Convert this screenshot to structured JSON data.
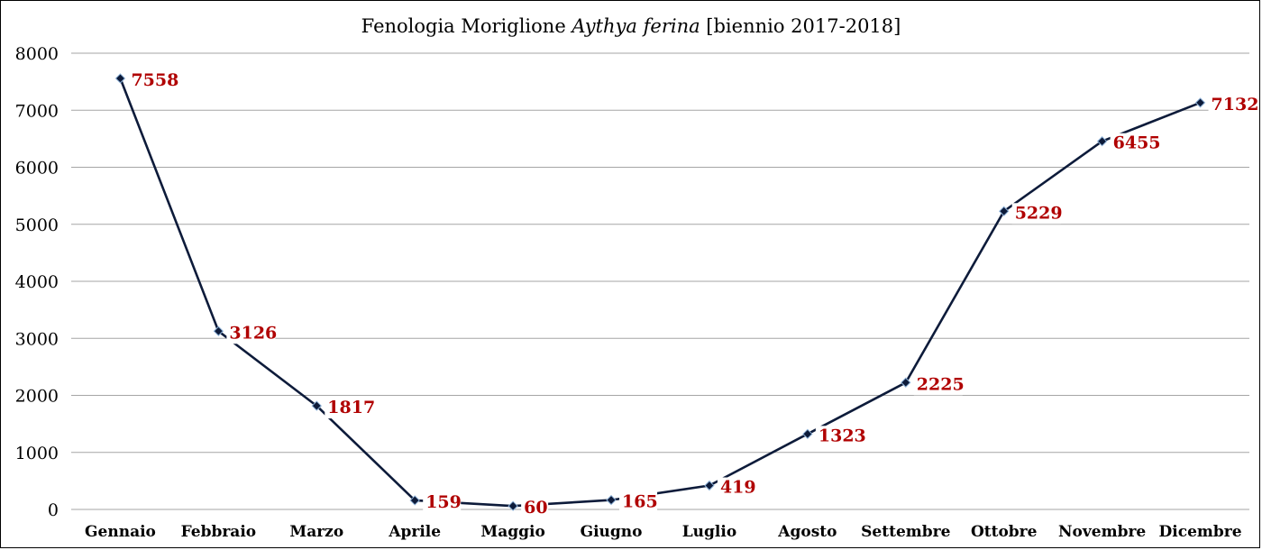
{
  "chart_data": {
    "type": "line",
    "title_prefix": "Fenologia Moriglione ",
    "title_italic": "Aythya ferina",
    "title_suffix": " [biennio 2017-2018]",
    "categories": [
      "Gennaio",
      "Febbraio",
      "Marzo",
      "Aprile",
      "Maggio",
      "Giugno",
      "Luglio",
      "Agosto",
      "Settembre",
      "Ottobre",
      "Novembre",
      "Dicembre"
    ],
    "values": [
      7558,
      3126,
      1817,
      159,
      60,
      165,
      419,
      1323,
      2225,
      5229,
      6455,
      7132
    ],
    "ylim": [
      0,
      8000
    ],
    "yticks": [
      0,
      1000,
      2000,
      3000,
      4000,
      5000,
      6000,
      7000,
      8000
    ],
    "grid": true,
    "xlabel": "",
    "ylabel": "",
    "colors": {
      "line": "#0d1b3a",
      "marker": "#0d1b3a",
      "marker_edge": "#8fb3d9",
      "data_label": "#b00000",
      "grid": "#a6a6a6"
    }
  }
}
